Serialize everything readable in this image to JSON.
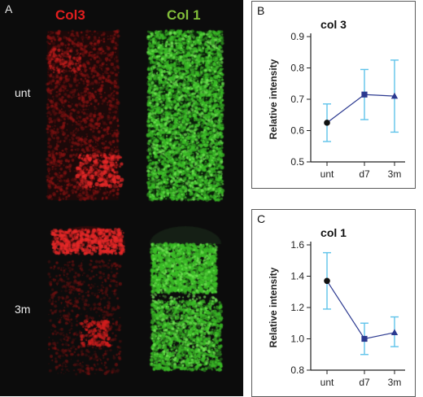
{
  "panel_a": {
    "label": "A",
    "stain_red": "Col3",
    "stain_green": "Col 1",
    "rows": [
      "unt",
      "3m"
    ],
    "colors": {
      "red": "#e01e1e",
      "green": "#82be3a",
      "background": "#0c0c0c"
    }
  },
  "chart_data": [
    {
      "panel": "B",
      "type": "line",
      "title": "col 3",
      "xlabel": "",
      "ylabel": "Relative intensity",
      "categories": [
        "unt",
        "d7",
        "3m"
      ],
      "values": [
        0.625,
        0.715,
        0.71
      ],
      "error_low": [
        0.565,
        0.635,
        0.595
      ],
      "error_high": [
        0.685,
        0.795,
        0.825
      ],
      "markers": [
        "circle",
        "square",
        "triangle"
      ],
      "ylim": [
        0.5,
        0.9
      ],
      "yticks": [
        "0.5",
        "0.6",
        "0.7",
        "0.8",
        "0.9"
      ],
      "line_color": "#2b3990",
      "error_color": "#5fc3ea"
    },
    {
      "panel": "C",
      "type": "line",
      "title": "col 1",
      "xlabel": "",
      "ylabel": "Relative intensity",
      "categories": [
        "unt",
        "d7",
        "3m"
      ],
      "values": [
        1.37,
        1.0,
        1.04
      ],
      "error_low": [
        1.19,
        0.9,
        0.95
      ],
      "error_high": [
        1.55,
        1.1,
        1.14
      ],
      "markers": [
        "circle",
        "square",
        "triangle"
      ],
      "ylim": [
        0.8,
        1.6
      ],
      "yticks": [
        "0.8",
        "1.0",
        "1.2",
        "1.4",
        "1.6"
      ],
      "line_color": "#2b3990",
      "error_color": "#5fc3ea"
    }
  ]
}
